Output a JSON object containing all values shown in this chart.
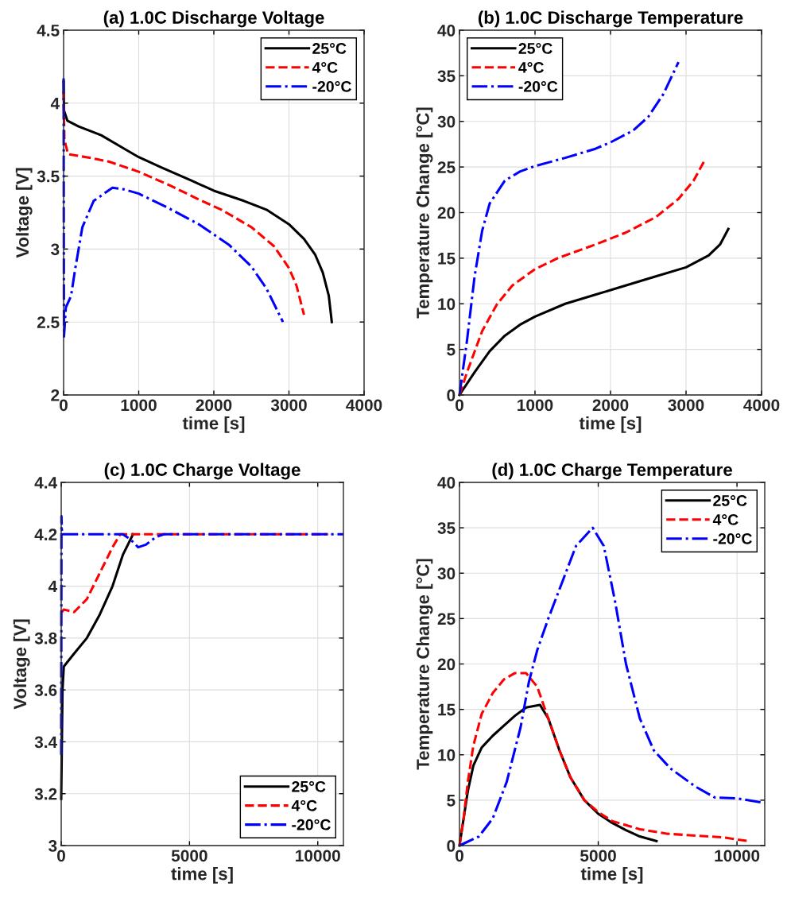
{
  "chart_data": [
    {
      "type": "line",
      "title": "(a) 1.0C Discharge Voltage",
      "xlabel": "time [s]",
      "ylabel": "Voltage [V]",
      "xlim": [
        0,
        4000
      ],
      "xticks": [
        0,
        1000,
        2000,
        3000,
        4000
      ],
      "ylim": [
        2,
        4.5
      ],
      "yticks": [
        2,
        2.5,
        3,
        3.5,
        4,
        4.5
      ],
      "grid": true,
      "legend": "top right",
      "series": [
        {
          "name": "25°C",
          "color": "#000000",
          "line_style": "solid",
          "x": [
            0,
            5,
            50,
            200,
            500,
            800,
            1000,
            1300,
            1700,
            2000,
            2400,
            2700,
            3000,
            3200,
            3350,
            3450,
            3530,
            3570
          ],
          "values": [
            4.15,
            3.95,
            3.88,
            3.84,
            3.78,
            3.69,
            3.63,
            3.56,
            3.47,
            3.4,
            3.33,
            3.27,
            3.17,
            3.07,
            2.96,
            2.84,
            2.68,
            2.5
          ]
        },
        {
          "name": "4°C",
          "color": "#ff0000",
          "line_style": "dashed",
          "x": [
            0,
            10,
            60,
            300,
            600,
            1000,
            1400,
            1800,
            2100,
            2500,
            2800,
            3000,
            3100,
            3200
          ],
          "values": [
            4.08,
            3.75,
            3.65,
            3.63,
            3.6,
            3.53,
            3.44,
            3.34,
            3.27,
            3.15,
            3.02,
            2.87,
            2.75,
            2.55
          ]
        },
        {
          "name": "-20°C",
          "color": "#0000ff",
          "line_style": "dashdot",
          "x": [
            0,
            5,
            30,
            100,
            150,
            250,
            400,
            650,
            800,
            1000,
            1400,
            1800,
            2200,
            2500,
            2700,
            2920
          ],
          "values": [
            4.17,
            2.4,
            2.6,
            2.68,
            2.85,
            3.15,
            3.33,
            3.42,
            3.41,
            3.38,
            3.28,
            3.17,
            3.03,
            2.88,
            2.73,
            2.5
          ]
        }
      ]
    },
    {
      "type": "line",
      "title": "(b) 1.0C Discharge Temperature",
      "xlabel": "time [s]",
      "ylabel": "Temperature Change [°C]",
      "xlim": [
        0,
        4000
      ],
      "xticks": [
        0,
        1000,
        2000,
        3000,
        4000
      ],
      "ylim": [
        0,
        40
      ],
      "yticks": [
        0,
        5,
        10,
        15,
        20,
        25,
        30,
        35,
        40
      ],
      "grid": true,
      "legend": "top left",
      "series": [
        {
          "name": "25°C",
          "color": "#000000",
          "line_style": "solid",
          "x": [
            0,
            200,
            400,
            600,
            800,
            1000,
            1400,
            1800,
            2200,
            2600,
            3000,
            3300,
            3450,
            3560
          ],
          "values": [
            0,
            2.5,
            4.8,
            6.5,
            7.7,
            8.6,
            10,
            11,
            12,
            13,
            14,
            15.3,
            16.5,
            18.2
          ]
        },
        {
          "name": "4°C",
          "color": "#ff0000",
          "line_style": "dashed",
          "x": [
            0,
            100,
            300,
            500,
            700,
            1000,
            1300,
            1800,
            2200,
            2600,
            2900,
            3100,
            3250
          ],
          "values": [
            0,
            2.5,
            7,
            10,
            12,
            13.8,
            15,
            16.5,
            17.8,
            19.5,
            21.5,
            23.5,
            25.8
          ]
        },
        {
          "name": "-20°C",
          "color": "#0000ff",
          "line_style": "dashdot",
          "x": [
            0,
            100,
            200,
            300,
            400,
            600,
            800,
            1000,
            1400,
            1800,
            2000,
            2300,
            2500,
            2700,
            2900
          ],
          "values": [
            0,
            6,
            13,
            18,
            21,
            23.5,
            24.5,
            25.1,
            26,
            27,
            27.7,
            29,
            30.5,
            33,
            36.5
          ]
        }
      ]
    },
    {
      "type": "line",
      "title": "(c) 1.0C Charge Voltage",
      "xlabel": "time [s]",
      "ylabel": "Voltage [V]",
      "xlim": [
        0,
        11000
      ],
      "xticks": [
        0,
        5000,
        10000
      ],
      "ylim": [
        3,
        4.4
      ],
      "yticks": [
        3,
        3.2,
        3.4,
        3.6,
        3.8,
        4,
        4.2,
        4.4
      ],
      "grid": true,
      "legend": "bottom right",
      "series": [
        {
          "name": "25°C",
          "color": "#000000",
          "line_style": "solid",
          "x": [
            0,
            20,
            50,
            100,
            500,
            1000,
            1500,
            2000,
            2400,
            2800
          ],
          "values": [
            3.18,
            3.35,
            3.6,
            3.69,
            3.74,
            3.8,
            3.89,
            4.0,
            4.12,
            4.2
          ]
        },
        {
          "name": "4°C",
          "color": "#ff0000",
          "line_style": "dashed",
          "x": [
            30,
            100,
            500,
            1000,
            1500,
            2000,
            2300,
            10400
          ],
          "values": [
            3.9,
            3.91,
            3.9,
            3.95,
            4.05,
            4.15,
            4.2,
            4.2
          ]
        },
        {
          "name": "-20°C",
          "color": "#0000ff",
          "line_style": "dashdot",
          "x": [
            0,
            10,
            30,
            2400,
            2700,
            3000,
            3300,
            3700,
            4000,
            11000
          ],
          "values": [
            3.35,
            4.27,
            4.2,
            4.2,
            4.18,
            4.15,
            4.16,
            4.19,
            4.2,
            4.2
          ]
        }
      ]
    },
    {
      "type": "line",
      "title": "(d) 1.0C Charge Temperature",
      "xlabel": "time [s]",
      "ylabel": "Temperature Change [°C]",
      "xlim": [
        0,
        11000
      ],
      "xticks": [
        0,
        5000,
        10000
      ],
      "ylim": [
        0,
        40
      ],
      "yticks": [
        0,
        5,
        10,
        15,
        20,
        25,
        30,
        35,
        40
      ],
      "grid": true,
      "legend": "top right",
      "series": [
        {
          "name": "25°C",
          "color": "#000000",
          "line_style": "solid",
          "x": [
            0,
            150,
            300,
            500,
            800,
            1200,
            1600,
            2000,
            2400,
            2900,
            3200,
            3600,
            4000,
            4500,
            5000,
            5500,
            6000,
            6500,
            7100
          ],
          "values": [
            0,
            3,
            6,
            8.8,
            10.8,
            12.1,
            13.2,
            14.3,
            15.2,
            15.5,
            14,
            10.5,
            7.5,
            5,
            3.5,
            2.5,
            1.7,
            1,
            0.5
          ]
        },
        {
          "name": "4°C",
          "color": "#ff0000",
          "line_style": "dashed",
          "x": [
            0,
            150,
            300,
            500,
            800,
            1200,
            1600,
            2000,
            2400,
            2800,
            3200,
            3600,
            4000,
            4500,
            5000,
            5500,
            6500,
            7500,
            8500,
            9500,
            10400
          ],
          "values": [
            0,
            3,
            7,
            11,
            14.5,
            16.8,
            18.3,
            19,
            19,
            17.5,
            14,
            10.5,
            7.5,
            5,
            3.7,
            2.7,
            1.8,
            1.3,
            1.1,
            0.9,
            0.5
          ]
        },
        {
          "name": "-20°C",
          "color": "#0000ff",
          "line_style": "dashdot",
          "x": [
            0,
            700,
            1200,
            1700,
            2200,
            2500,
            2800,
            3200,
            3700,
            4200,
            4800,
            5200,
            5600,
            6000,
            6500,
            7000,
            7600,
            8500,
            9200,
            10000,
            11000
          ],
          "values": [
            0,
            1,
            3,
            7,
            13,
            18,
            21.5,
            25,
            29,
            33,
            35,
            33,
            27,
            20,
            14,
            10.5,
            8.5,
            6.5,
            5.3,
            5.2,
            4.7
          ]
        }
      ]
    }
  ]
}
